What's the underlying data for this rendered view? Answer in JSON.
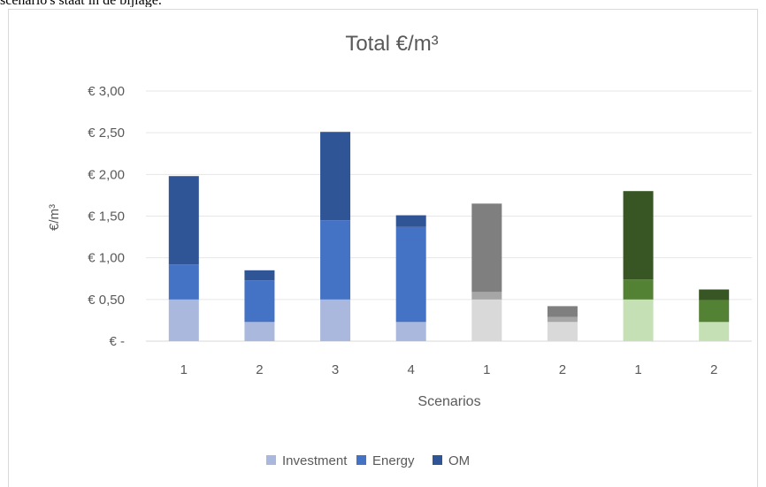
{
  "caption_fragment": "scenario's staat in de bijlage.",
  "chart_data": {
    "type": "bar",
    "stacked": true,
    "title": "Total €/m³",
    "xlabel": "Scenarios",
    "ylabel": "€/m³",
    "ylim": [
      0,
      3
    ],
    "y_ticks": [
      "€ -",
      "€ 0,50",
      "€ 1,00",
      "€ 1,50",
      "€ 2,00",
      "€ 2,50",
      "€ 3,00"
    ],
    "categories": [
      "1",
      "2",
      "3",
      "4",
      "1",
      "2",
      "1",
      "2"
    ],
    "series": [
      {
        "name": "Investment",
        "values": [
          0.5,
          0.23,
          0.5,
          0.23,
          0.5,
          0.23,
          0.5,
          0.23
        ]
      },
      {
        "name": "Energy",
        "values": [
          0.42,
          0.5,
          0.95,
          1.14,
          0.09,
          0.06,
          0.24,
          0.26
        ]
      },
      {
        "name": "OM",
        "values": [
          1.06,
          0.12,
          1.06,
          0.14,
          1.06,
          0.13,
          1.06,
          0.13
        ]
      }
    ],
    "group_colors": [
      {
        "bars": [
          0,
          1,
          2,
          3
        ],
        "colors": [
          "#a9b8dc",
          "#4472c4",
          "#2f5597"
        ]
      },
      {
        "bars": [
          4,
          5
        ],
        "colors": [
          "#d9d9d9",
          "#a6a6a6",
          "#7f7f7f"
        ]
      },
      {
        "bars": [
          6,
          7
        ],
        "colors": [
          "#c5e0b4",
          "#548235",
          "#375623"
        ]
      }
    ],
    "legend": {
      "position": "bottom",
      "colors": [
        "#a9b8dc",
        "#4472c4",
        "#2f5597"
      ]
    },
    "grid": true
  }
}
